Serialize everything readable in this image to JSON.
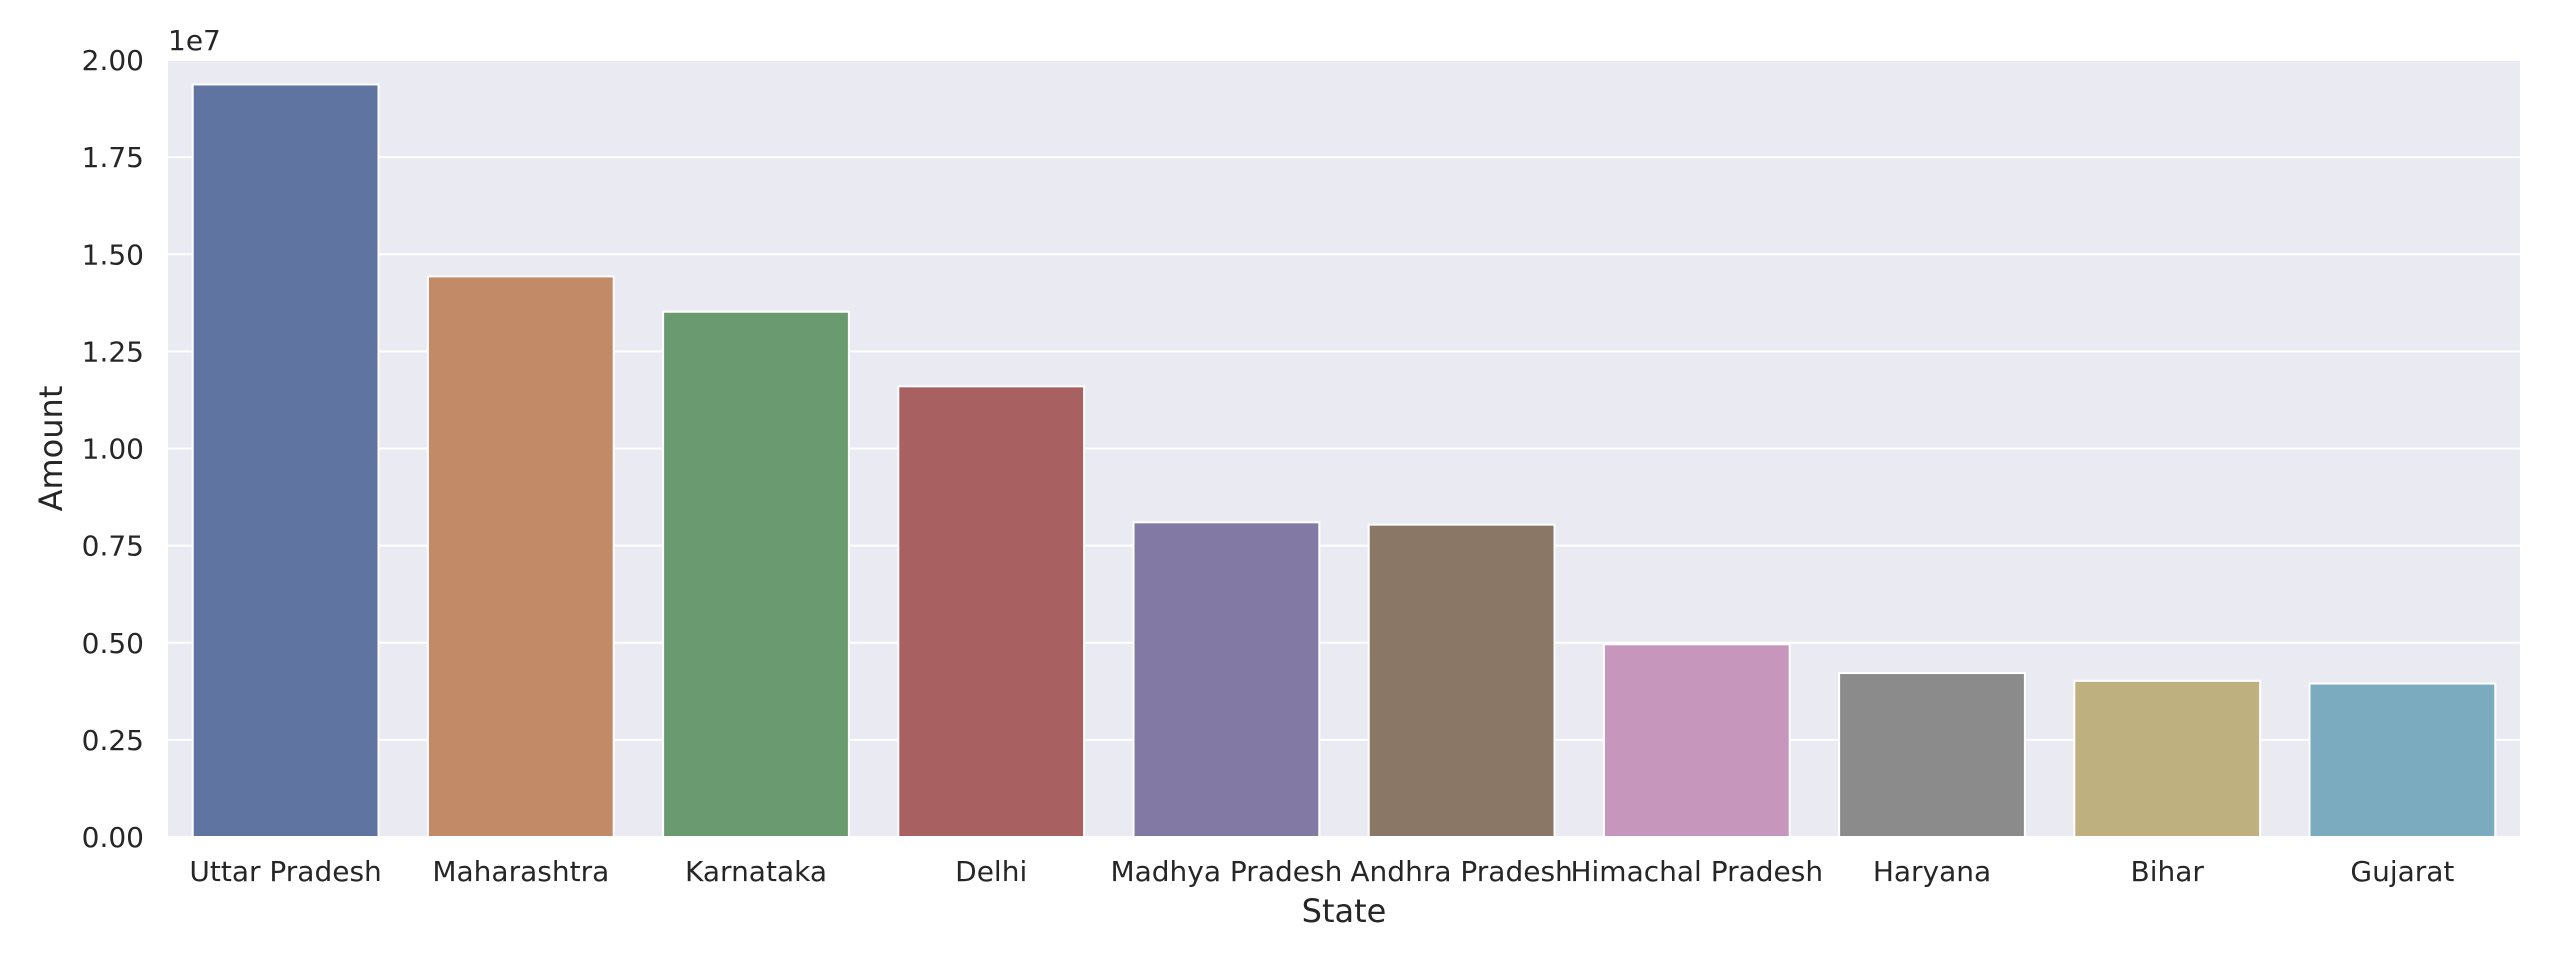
{
  "chart_data": {
    "type": "bar",
    "title": "",
    "xlabel": "State",
    "ylabel": "Amount",
    "y_offset_label": "1e7",
    "ylim": [
      0,
      2.0
    ],
    "yticks": [
      "0.00",
      "0.25",
      "0.50",
      "0.75",
      "1.00",
      "1.25",
      "1.50",
      "1.75",
      "2.00"
    ],
    "grid": true,
    "legend": false,
    "categories": [
      "Uttar Pradesh",
      "Maharashtra",
      "Karnataka",
      "Delhi",
      "Madhya Pradesh",
      "Andhra Pradesh",
      "Himachal Pradesh",
      "Haryana",
      "Bihar",
      "Gujarat"
    ],
    "values": [
      19.37,
      14.43,
      13.52,
      11.6,
      8.1,
      8.04,
      4.96,
      4.22,
      4.02,
      3.95
    ],
    "colors": [
      "#5f74a0",
      "#c28a66",
      "#6a9a70",
      "#a86160",
      "#8379a5",
      "#8a7766",
      "#c796bd",
      "#8b8b8b",
      "#bfb07f",
      "#7aabbf"
    ],
    "plot_background": "#eaeaf2",
    "grid_color": "#ffffff"
  }
}
